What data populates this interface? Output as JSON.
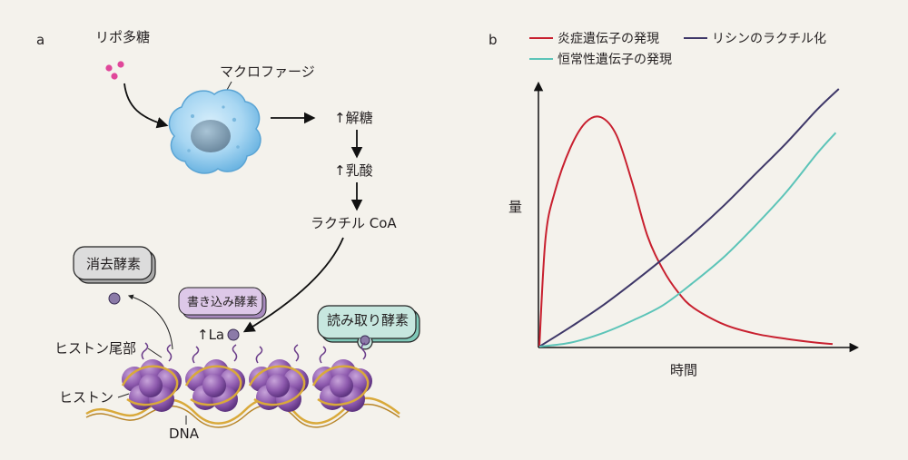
{
  "panel_a": {
    "panel_label": "a",
    "lps_label": "リポ多糖",
    "macrophage_label": "マクロファージ",
    "glycolysis_label": "↑解糖",
    "lactate_label": "↑乳酸",
    "lactyl_coa_label": "ラクチル CoA",
    "eraser_label": "消去酵素",
    "writer_label": "書き込み酵素",
    "reader_label": "読み取り酵素",
    "la_label": "↑La",
    "histone_tail_label": "ヒストン尾部",
    "histone_label": "ヒストン",
    "dna_label": "DNA"
  },
  "panel_b": {
    "panel_label": "b",
    "legend": [
      {
        "label": "炎症遺伝子の発現",
        "color": "#c8202f"
      },
      {
        "label": "リシンのラクチル化",
        "color": "#3e3768"
      },
      {
        "label": "恒常性遺伝子の発現",
        "color": "#5cc4b8"
      }
    ],
    "ylabel": "量",
    "xlabel": "時間"
  },
  "chart_data": {
    "type": "line",
    "title": "",
    "xlabel": "時間",
    "ylabel": "量",
    "xlim": [
      0,
      1
    ],
    "ylim": [
      0,
      1
    ],
    "grid": false,
    "legend_position": "top",
    "series": [
      {
        "name": "炎症遺伝子の発現",
        "color": "#c8202f",
        "x": [
          0,
          0.02,
          0.05,
          0.1,
          0.15,
          0.2,
          0.25,
          0.3,
          0.35,
          0.4,
          0.45,
          0.5,
          0.6,
          0.7,
          0.8,
          0.9,
          0.95
        ],
        "y": [
          0,
          0.42,
          0.6,
          0.77,
          0.87,
          0.89,
          0.82,
          0.64,
          0.43,
          0.3,
          0.21,
          0.15,
          0.085,
          0.05,
          0.03,
          0.015,
          0.01
        ]
      },
      {
        "name": "リシンのラクチル化",
        "color": "#3e3768",
        "x": [
          0,
          0.1,
          0.2,
          0.3,
          0.4,
          0.5,
          0.6,
          0.7,
          0.8,
          0.9,
          0.97
        ],
        "y": [
          0,
          0.075,
          0.155,
          0.245,
          0.34,
          0.44,
          0.55,
          0.67,
          0.79,
          0.92,
          1.0
        ]
      },
      {
        "name": "恒常性遺伝子の発現",
        "color": "#5cc4b8",
        "x": [
          0,
          0.1,
          0.2,
          0.3,
          0.4,
          0.5,
          0.6,
          0.7,
          0.8,
          0.9,
          0.96
        ],
        "y": [
          0,
          0.015,
          0.05,
          0.1,
          0.16,
          0.25,
          0.35,
          0.47,
          0.6,
          0.75,
          0.83
        ]
      }
    ]
  }
}
